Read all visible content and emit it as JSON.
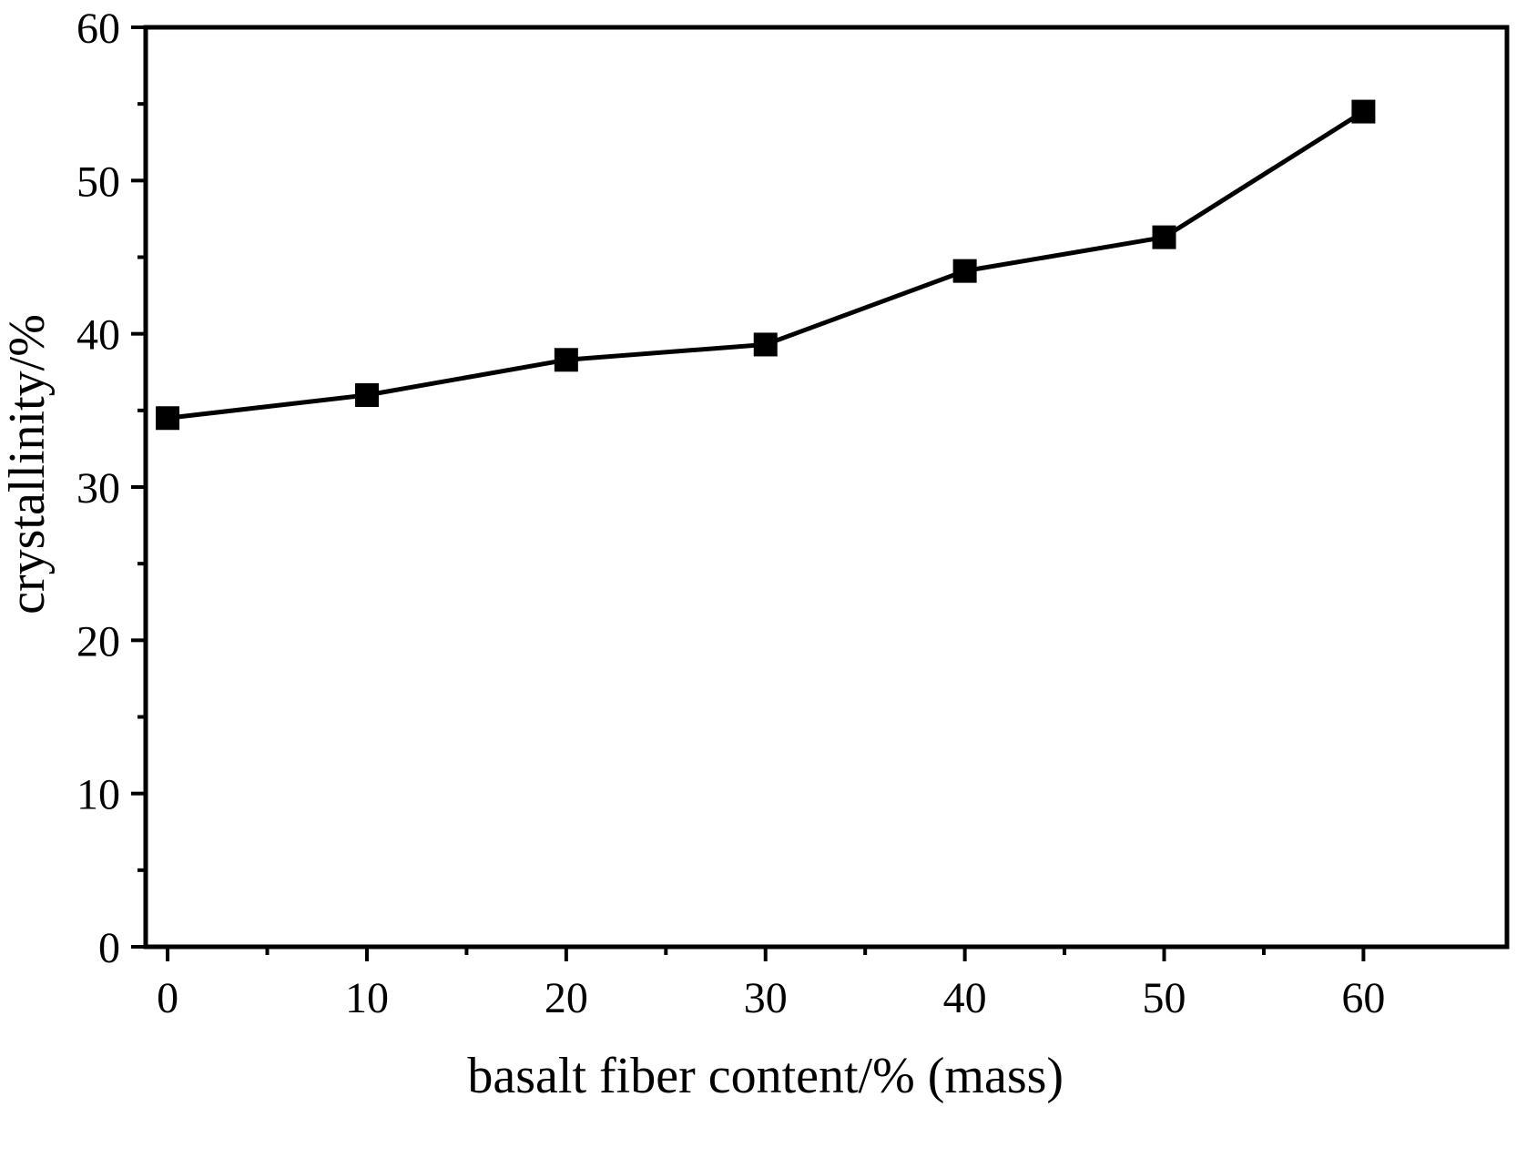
{
  "figure": {
    "background": "#ffffff",
    "frame_color": "#000000"
  },
  "chart_data": {
    "type": "line",
    "title": "",
    "xlabel": "basalt fiber content/% (mass)",
    "ylabel": "crystallinity/%",
    "x": [
      0,
      10,
      20,
      30,
      40,
      50,
      60
    ],
    "y": [
      34.5,
      36.0,
      38.3,
      39.3,
      44.1,
      46.3,
      54.5
    ],
    "series_name": "crystallinity",
    "xticks": [
      0,
      10,
      20,
      30,
      40,
      50,
      60
    ],
    "yticks": [
      0,
      10,
      20,
      30,
      40,
      50,
      60
    ],
    "xtick_labels": [
      "0",
      "10",
      "20",
      "30",
      "40",
      "50",
      "60"
    ],
    "ytick_labels": [
      "0",
      "10",
      "20",
      "30",
      "40",
      "50",
      "60"
    ],
    "xlim": [
      -1.1,
      67.2
    ],
    "ylim": [
      0,
      60
    ],
    "grid": false,
    "legend": "none",
    "marker": "square",
    "marker_size": 26,
    "line_color": "#000000",
    "marker_color": "#000000",
    "line_width": 5
  }
}
